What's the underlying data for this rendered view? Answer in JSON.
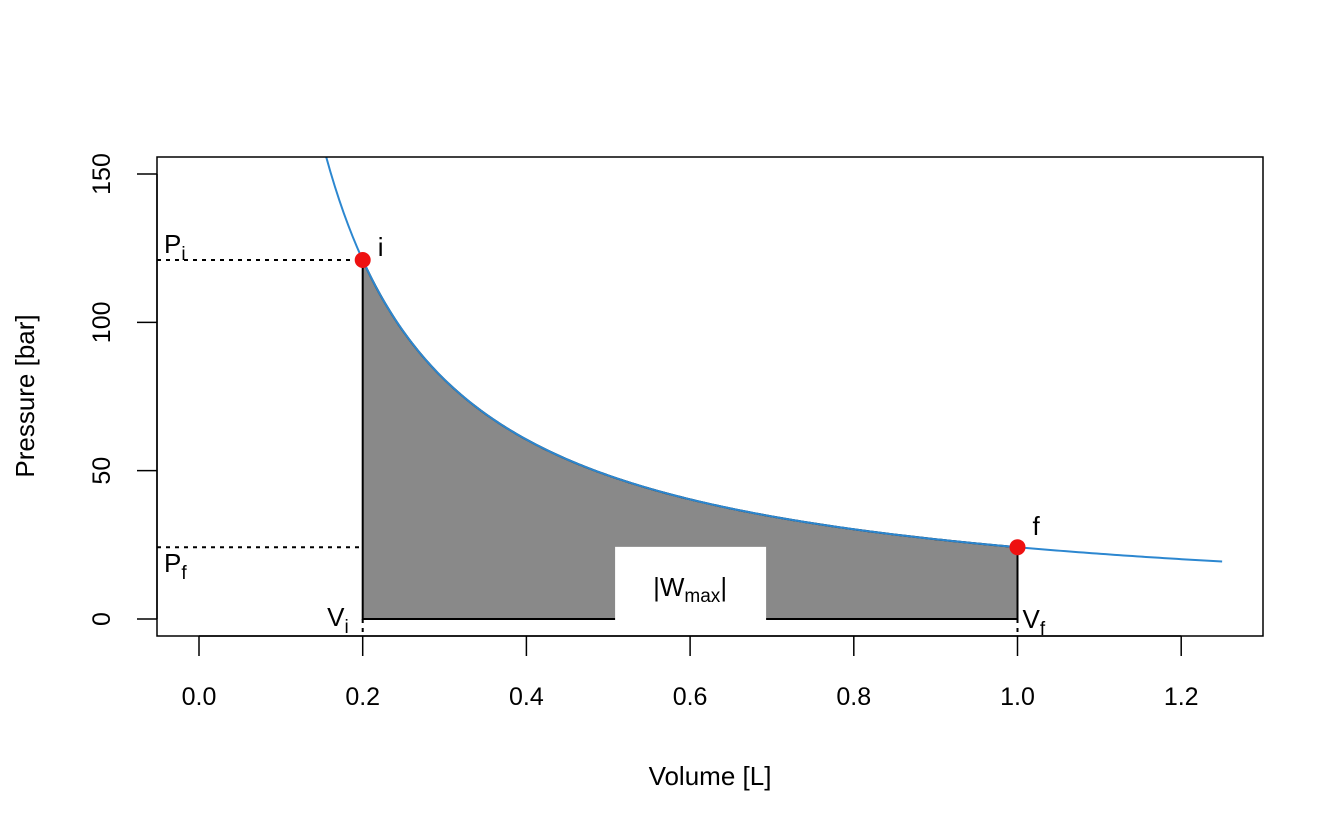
{
  "chart_data": {
    "type": "line",
    "title": "",
    "xlabel": "Volume [L]",
    "ylabel": "Pressure [bar]",
    "xlim": [
      -0.05,
      1.3
    ],
    "ylim": [
      -6,
      156
    ],
    "x_ticks": [
      0.0,
      0.2,
      0.4,
      0.6,
      0.8,
      1.0,
      1.2
    ],
    "x_tick_labels": [
      "0.0",
      "0.2",
      "0.4",
      "0.6",
      "0.8",
      "1.0",
      "1.2"
    ],
    "y_ticks": [
      0,
      50,
      100,
      150
    ],
    "y_tick_labels": [
      "0",
      "50",
      "100",
      "150"
    ],
    "grid": false,
    "series": [
      {
        "kind": "isotherm-curve",
        "color": "#2c87d0",
        "function": "P = 24.2 / V",
        "x_range": [
          0.155,
          1.25
        ]
      }
    ],
    "shaded_area": {
      "x_range": [
        0.2,
        1.0
      ],
      "fill": "#898989",
      "label_main": "|W",
      "label_sub": "max",
      "label_end": "|",
      "label_at": [
        0.6,
        10.5
      ]
    },
    "points": [
      {
        "label": "i",
        "x": 0.2,
        "y": 121,
        "color": "#ee1111"
      },
      {
        "label": "f",
        "x": 1.0,
        "y": 24.2,
        "color": "#ee1111"
      }
    ],
    "annotations": [
      {
        "id": "pi",
        "main": "P",
        "sub": "i"
      },
      {
        "id": "pf",
        "main": "P",
        "sub": "f"
      },
      {
        "id": "vi",
        "main": "V",
        "sub": "i"
      },
      {
        "id": "vf",
        "main": "V",
        "sub": "f"
      }
    ]
  }
}
